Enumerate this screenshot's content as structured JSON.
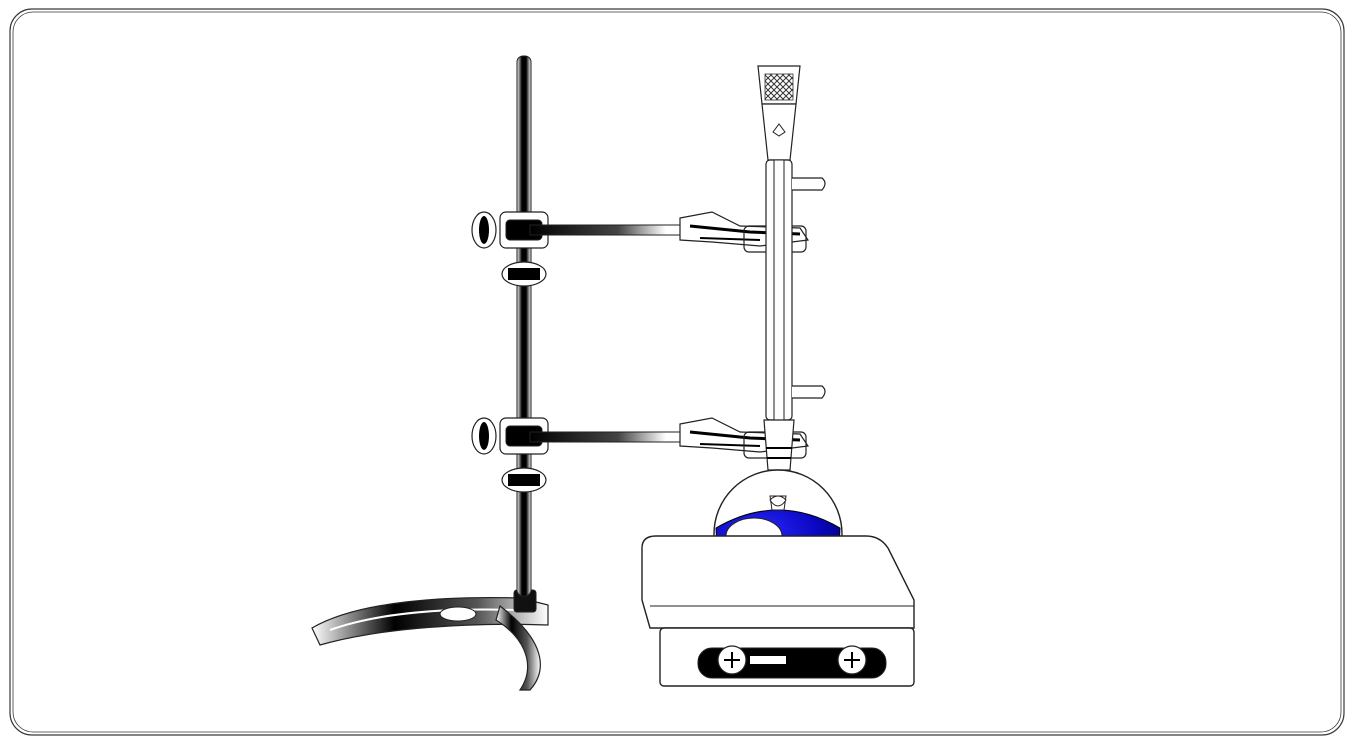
{
  "scene": {
    "apparatus": "reflux-condenser-setup",
    "components": [
      "frame",
      "retort-stand",
      "upper-clamp",
      "lower-clamp",
      "condenser",
      "round-bottom-flask",
      "hot-plate"
    ]
  },
  "colors": {
    "background": "#ffffff",
    "frame": "#3a3a3a",
    "outline": "#222222",
    "metal_dark": "#000000",
    "metal_light": "#ffffff",
    "liquid": "#0a06c0",
    "liquid_dark": "#000090"
  },
  "icons": {
    "condenser_top": "cross-hatch-icon",
    "condenser_drop": "drop-icon",
    "hot_plate_knob": "knob-icon"
  }
}
